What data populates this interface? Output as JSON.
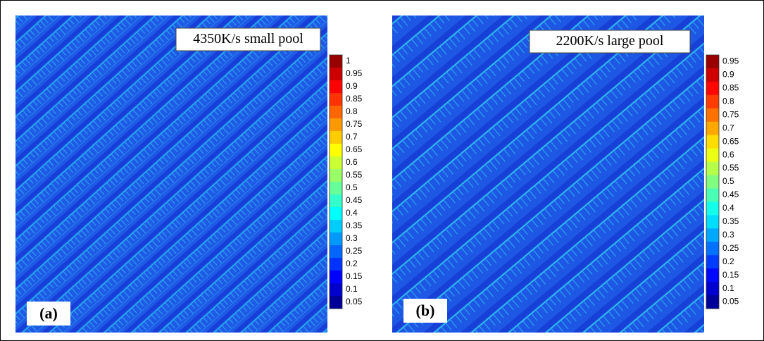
{
  "panels": [
    {
      "title": "4350K/s small pool",
      "label": "(a)",
      "colorbar": [
        "1",
        "0.95",
        "0.9",
        "0.85",
        "0.8",
        "0.75",
        "0.7",
        "0.65",
        "0.6",
        "0.55",
        "0.5",
        "0.45",
        "0.4",
        "0.35",
        "0.3",
        "0.25",
        "0.2",
        "0.15",
        "0.1",
        "0.05"
      ]
    },
    {
      "title": "2200K/s large pool",
      "label": "(b)",
      "colorbar": [
        "0.95",
        "0.9",
        "0.85",
        "0.8",
        "0.75",
        "0.7",
        "0.65",
        "0.6",
        "0.55",
        "0.5",
        "0.45",
        "0.4",
        "0.35",
        "0.3",
        "0.25",
        "0.2",
        "0.15",
        "0.1",
        "0.05"
      ]
    }
  ]
}
